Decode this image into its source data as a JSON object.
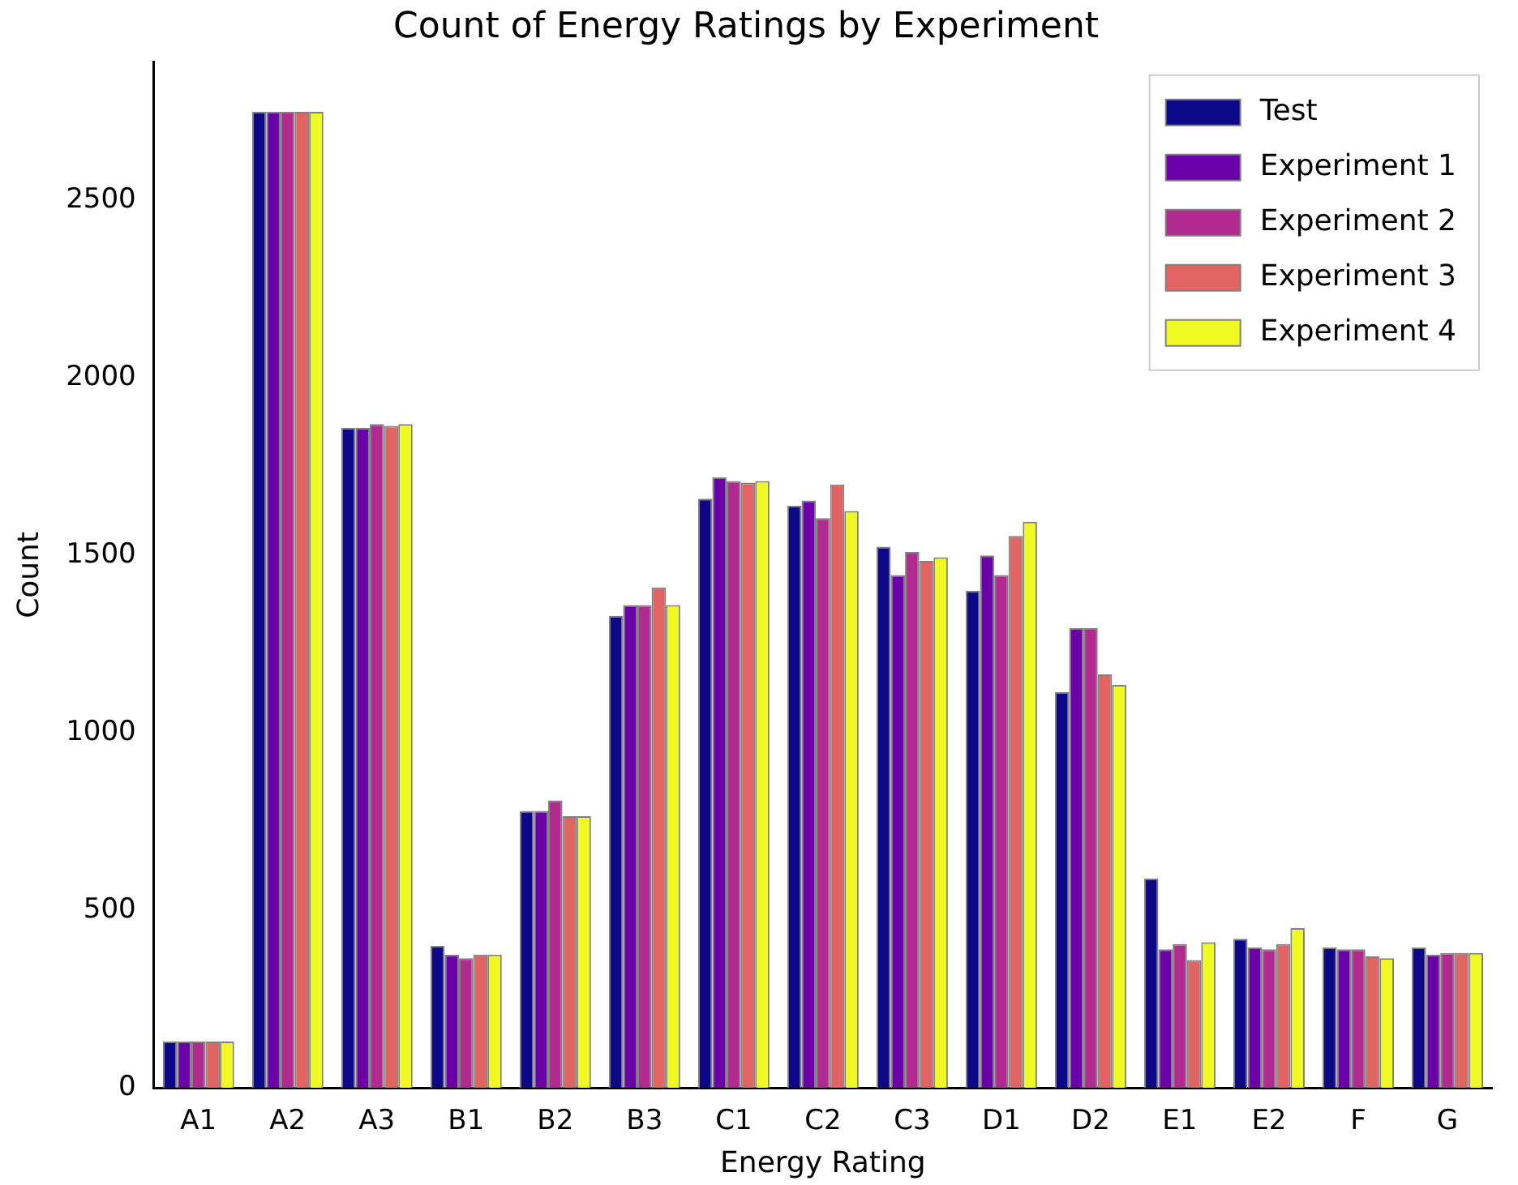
{
  "chart_data": {
    "type": "bar",
    "title": "Count of Energy Ratings by Experiment",
    "xlabel": "Energy Rating",
    "ylabel": "Count",
    "categories": [
      "A1",
      "A2",
      "A3",
      "B1",
      "B2",
      "B3",
      "C1",
      "C2",
      "C3",
      "D1",
      "D2",
      "E1",
      "E2",
      "F",
      "G"
    ],
    "series": [
      {
        "name": "Test",
        "color": "#0d0887",
        "values": [
          130,
          2750,
          1860,
          400,
          780,
          1330,
          1660,
          1640,
          1525,
          1400,
          1115,
          590,
          420,
          395,
          395
        ]
      },
      {
        "name": "Experiment 1",
        "color": "#6a00a8",
        "values": [
          130,
          2750,
          1860,
          375,
          780,
          1360,
          1720,
          1655,
          1445,
          1500,
          1295,
          390,
          395,
          390,
          375
        ]
      },
      {
        "name": "Experiment 2",
        "color": "#b12a90",
        "values": [
          130,
          2750,
          1870,
          365,
          810,
          1360,
          1710,
          1605,
          1510,
          1445,
          1295,
          405,
          390,
          390,
          380
        ]
      },
      {
        "name": "Experiment 3",
        "color": "#e16462",
        "values": [
          130,
          2750,
          1865,
          375,
          765,
          1410,
          1705,
          1700,
          1485,
          1555,
          1165,
          360,
          405,
          370,
          380
        ]
      },
      {
        "name": "Experiment 4",
        "color": "#f0f921",
        "values": [
          130,
          2750,
          1870,
          375,
          765,
          1360,
          1710,
          1625,
          1495,
          1595,
          1135,
          410,
          450,
          365,
          380
        ]
      }
    ],
    "ylim": [
      0,
      2890
    ],
    "yticks": [
      0,
      500,
      1000,
      1500,
      2000,
      2500
    ],
    "grid": false,
    "legend": "top right"
  }
}
